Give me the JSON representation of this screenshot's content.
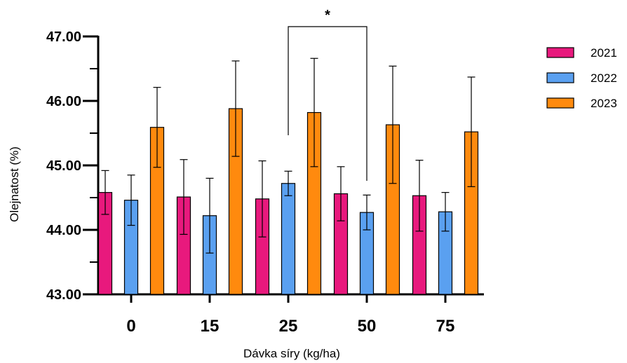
{
  "chart_data": {
    "type": "bar",
    "xlabel": "Dávka síry (kg/ha)",
    "ylabel": "Olejnatost (%)",
    "ylim": [
      43.0,
      47.0
    ],
    "yticks": [
      "43.00",
      "44.00",
      "45.00",
      "46.00",
      "47.00"
    ],
    "categories": [
      "0",
      "15",
      "25",
      "50",
      "75"
    ],
    "series": [
      {
        "name": "2021",
        "color": "#e8197d",
        "values": [
          44.58,
          44.51,
          44.48,
          44.56,
          44.53
        ],
        "errors": [
          0.34,
          0.58,
          0.59,
          0.42,
          0.55
        ]
      },
      {
        "name": "2022",
        "color": "#5aa0f0",
        "values": [
          44.46,
          44.22,
          44.72,
          44.27,
          44.28
        ],
        "errors": [
          0.39,
          0.58,
          0.19,
          0.27,
          0.3
        ]
      },
      {
        "name": "2023",
        "color": "#ff8a0e",
        "values": [
          45.59,
          45.88,
          45.82,
          45.63,
          45.52
        ],
        "errors": [
          0.62,
          0.74,
          0.84,
          0.91,
          0.85
        ]
      }
    ],
    "legend_position": "top-right",
    "grid": false,
    "significance": {
      "label": "*",
      "between": [
        "25",
        "50"
      ]
    }
  }
}
